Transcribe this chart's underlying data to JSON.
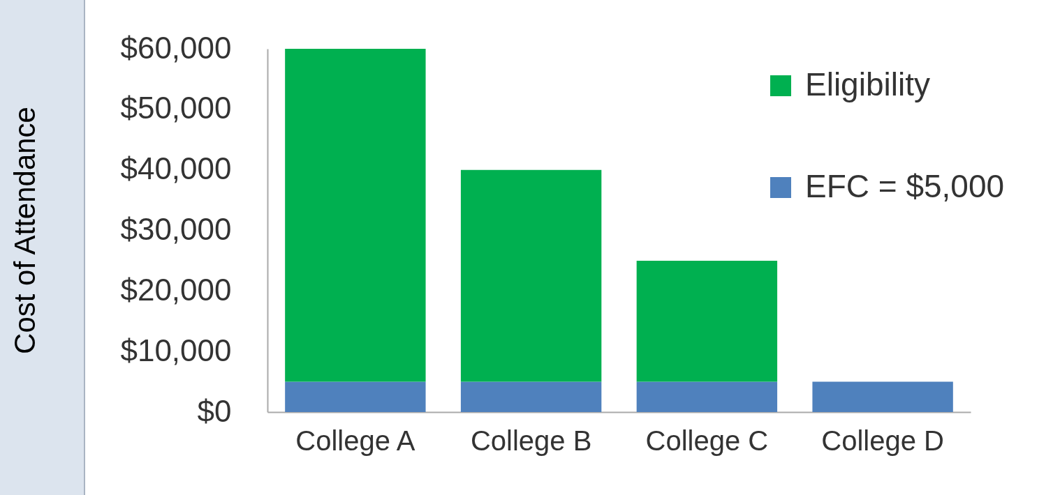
{
  "chart_data": {
    "type": "bar",
    "ylabel": "Cost of Attendance",
    "categories": [
      "College A",
      "College B",
      "College C",
      "College D"
    ],
    "stacked": true,
    "series": [
      {
        "name": "EFC = $5,000",
        "color": "#4f81bd",
        "values": [
          5000,
          5000,
          5000,
          5000
        ]
      },
      {
        "name": "Eligibility",
        "color": "#00b050",
        "values": [
          55000,
          35000,
          20000,
          null
        ]
      }
    ],
    "ylim": [
      0,
      60000
    ],
    "yticks": [
      {
        "value": 0,
        "label": "$0"
      },
      {
        "value": 10000,
        "label": "$10,000"
      },
      {
        "value": 20000,
        "label": "$20,000"
      },
      {
        "value": 30000,
        "label": "$30,000"
      },
      {
        "value": 40000,
        "label": "$40,000"
      },
      {
        "value": 50000,
        "label": "$50,000"
      },
      {
        "value": 60000,
        "label": "$60,000"
      }
    ],
    "grid": false,
    "legend": "top right"
  }
}
